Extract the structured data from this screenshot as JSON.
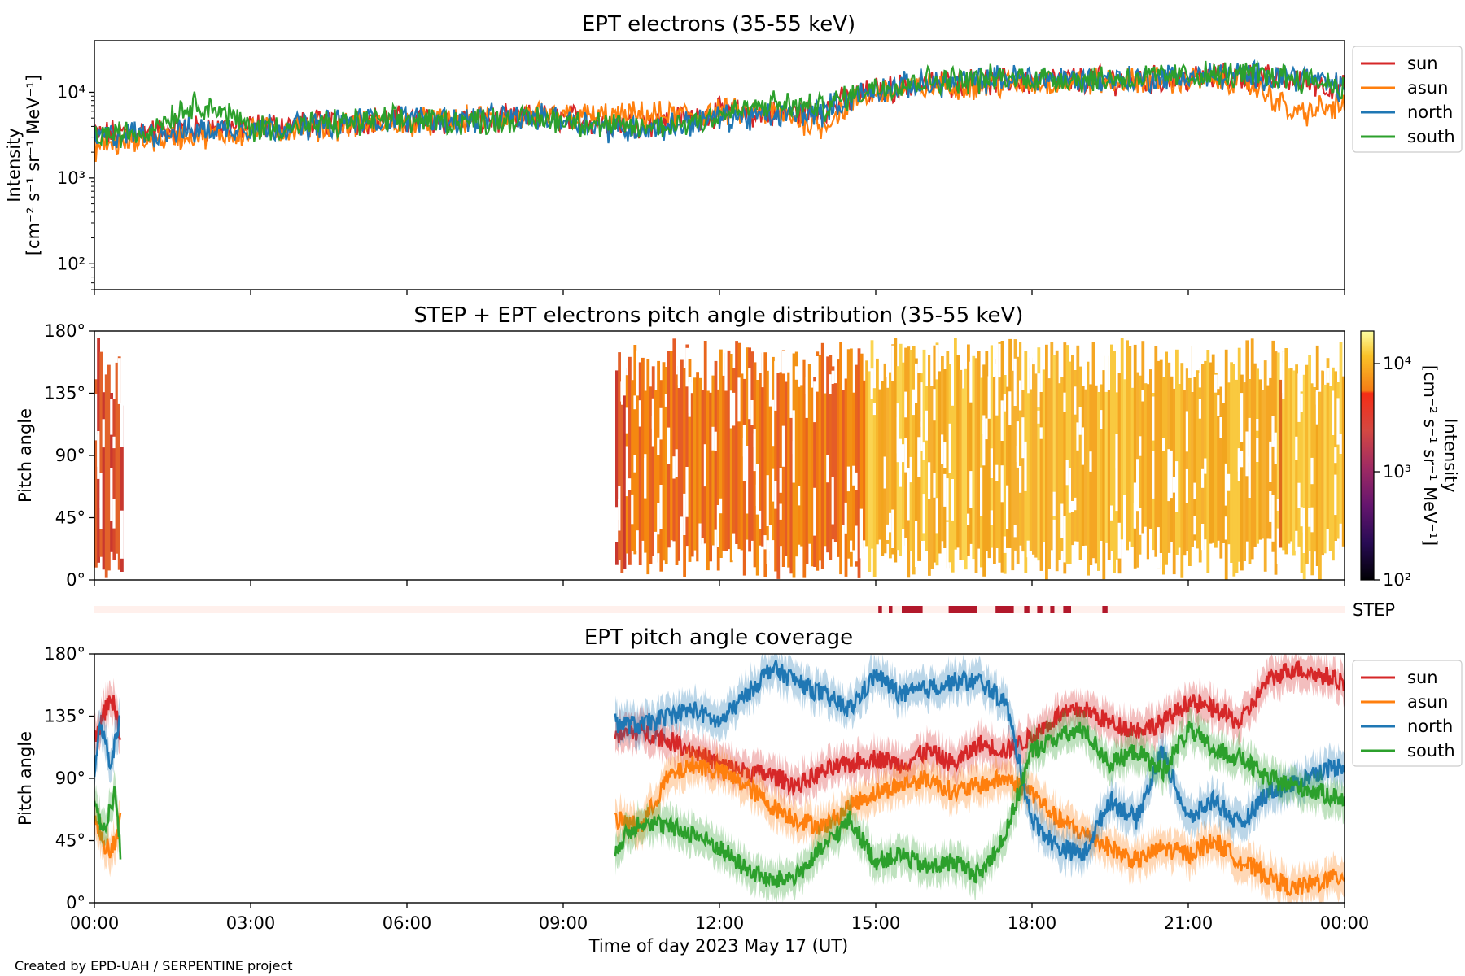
{
  "credit": "Created by EPD-UAH / SERPENTINE project",
  "colors": {
    "sun": "#d62728",
    "asun": "#ff7f0e",
    "north": "#1f77b4",
    "south": "#2ca02c",
    "step_bar": "#b2182b",
    "step_bg": "#fff0ec"
  },
  "chart_data": [
    {
      "type": "line",
      "title": "EPT electrons (35-55 keV)",
      "ylabel": [
        "Intensity",
        "[cm⁻² s⁻¹ sr⁻¹ MeV⁻¹]"
      ],
      "yscale": "log",
      "ylim": [
        50,
        40000
      ],
      "yticks": [
        {
          "v": 100,
          "label": "10²"
        },
        {
          "v": 1000,
          "label": "10³"
        },
        {
          "v": 10000,
          "label": "10⁴"
        }
      ],
      "x_unit": "hours",
      "xlim": [
        0,
        24
      ],
      "legend": {
        "entries": [
          "sun",
          "asun",
          "north",
          "south"
        ],
        "placement": "outside-right"
      },
      "series": [
        {
          "name": "sun",
          "color": "#d62728",
          "x": [
            0,
            1,
            2,
            3,
            4,
            5,
            6,
            7,
            8,
            9,
            10,
            11,
            12,
            13,
            14,
            15,
            16,
            17,
            18,
            19,
            20,
            21,
            22,
            23,
            24
          ],
          "y": [
            3200,
            3500,
            3800,
            4000,
            4200,
            4700,
            4800,
            4600,
            4900,
            5100,
            4300,
            4500,
            5800,
            5500,
            6200,
            10500,
            12500,
            13000,
            13500,
            14000,
            13800,
            14500,
            15000,
            14000,
            11000
          ]
        },
        {
          "name": "asun",
          "color": "#ff7f0e",
          "x": [
            0,
            1,
            2,
            3,
            4,
            5,
            6,
            7,
            8,
            9,
            10,
            11,
            12,
            13,
            14,
            15,
            16,
            17,
            18,
            19,
            20,
            21,
            22,
            23,
            24
          ],
          "y": [
            2300,
            2800,
            3200,
            3400,
            3900,
            4200,
            4400,
            4700,
            5100,
            5300,
            5200,
            5400,
            5900,
            5600,
            4100,
            10000,
            11500,
            12200,
            12800,
            13200,
            13500,
            14200,
            13800,
            5500,
            7000
          ]
        },
        {
          "name": "north",
          "color": "#1f77b4",
          "x": [
            0,
            1,
            2,
            3,
            4,
            5,
            6,
            7,
            8,
            9,
            10,
            11,
            12,
            13,
            14,
            15,
            16,
            17,
            18,
            19,
            20,
            21,
            22,
            23,
            24
          ],
          "y": [
            3000,
            3300,
            3600,
            3900,
            4100,
            4600,
            5000,
            4800,
            5000,
            4900,
            3700,
            3900,
            5100,
            5200,
            6000,
            10800,
            12800,
            13800,
            15200,
            14000,
            14500,
            15300,
            15600,
            15800,
            11000
          ]
        },
        {
          "name": "south",
          "color": "#2ca02c",
          "x": [
            0,
            1,
            2,
            3,
            4,
            5,
            6,
            7,
            8,
            9,
            10,
            11,
            12,
            13,
            14,
            15,
            16,
            17,
            18,
            19,
            20,
            21,
            22,
            23,
            24
          ],
          "y": [
            3100,
            3400,
            7500,
            3800,
            4000,
            4500,
            4700,
            4600,
            4800,
            4800,
            3900,
            4000,
            5300,
            7200,
            6600,
            11500,
            13800,
            14200,
            14800,
            14500,
            14600,
            15800,
            16000,
            15200,
            11500
          ]
        }
      ]
    },
    {
      "type": "heatmap",
      "title": "STEP + EPT electrons pitch angle distribution (35-55 keV)",
      "ylabel": "Pitch angle",
      "ylim": [
        0,
        180
      ],
      "yticks": [
        "0°",
        "45°",
        "90°",
        "135°",
        "180°"
      ],
      "x_unit": "hours",
      "xlim": [
        0,
        24
      ],
      "data_intervals_hours": [
        [
          0.0,
          0.5
        ],
        [
          10.0,
          24.0
        ]
      ],
      "colorbar": {
        "label": [
          "Intensity",
          "[cm⁻² s⁻¹ sr⁻¹ MeV⁻¹]"
        ],
        "scale": "log",
        "range": [
          100,
          20000
        ],
        "ticks": [
          {
            "v": 100,
            "label": "10²"
          },
          {
            "v": 1000,
            "label": "10³"
          },
          {
            "v": 10000,
            "label": "10⁴"
          }
        ],
        "colormap": "inferno"
      }
    },
    {
      "type": "timeline",
      "label": "STEP",
      "x_unit": "hours",
      "intervals_hours": [
        [
          15.05,
          15.12
        ],
        [
          15.25,
          15.32
        ],
        [
          15.5,
          15.9
        ],
        [
          16.4,
          16.95
        ],
        [
          17.3,
          17.65
        ],
        [
          17.85,
          17.95
        ],
        [
          18.1,
          18.2
        ],
        [
          18.35,
          18.43
        ],
        [
          18.6,
          18.75
        ],
        [
          19.35,
          19.45
        ]
      ]
    },
    {
      "type": "line",
      "title": "EPT pitch angle coverage",
      "ylabel": "Pitch angle",
      "ylim": [
        0,
        180
      ],
      "yticks": [
        "0°",
        "45°",
        "90°",
        "135°",
        "180°"
      ],
      "xlabel": "Time of day 2023 May 17 (UT)",
      "xticks": [
        "00:00",
        "03:00",
        "06:00",
        "09:00",
        "12:00",
        "15:00",
        "18:00",
        "21:00",
        "00:00"
      ],
      "x_unit": "hours",
      "xlim": [
        0,
        24
      ],
      "legend": {
        "entries": [
          "sun",
          "asun",
          "north",
          "south"
        ],
        "placement": "outside-right"
      },
      "series": [
        {
          "name": "sun",
          "color": "#d62728",
          "segments": [
            {
              "x": [
                0.0,
                0.1,
                0.2,
                0.3,
                0.4,
                0.5
              ],
              "y": [
                120,
                128,
                138,
                150,
                140,
                120
              ]
            },
            {
              "x": [
                10.0,
                10.5,
                11.0,
                11.5,
                12.0,
                12.5,
                13.0,
                13.5,
                14.0,
                14.5,
                15.0,
                15.5,
                16.0,
                16.5,
                17.0,
                17.5,
                18.0,
                18.5,
                19.0,
                19.5,
                20.0,
                20.5,
                21.0,
                21.5,
                22.0,
                22.5,
                23.0,
                23.5,
                24.0
              ],
              "y": [
                120,
                125,
                118,
                110,
                100,
                95,
                92,
                85,
                95,
                100,
                105,
                100,
                110,
                100,
                115,
                110,
                120,
                135,
                140,
                130,
                125,
                130,
                145,
                140,
                130,
                160,
                170,
                165,
                160
              ]
            }
          ]
        },
        {
          "name": "asun",
          "color": "#ff7f0e",
          "segments": [
            {
              "x": [
                0.0,
                0.1,
                0.2,
                0.3,
                0.4,
                0.5
              ],
              "y": [
                60,
                50,
                42,
                38,
                45,
                60
              ]
            },
            {
              "x": [
                10.0,
                10.5,
                11.0,
                11.5,
                12.0,
                12.5,
                13.0,
                13.5,
                14.0,
                14.5,
                15.0,
                15.5,
                16.0,
                16.5,
                17.0,
                17.5,
                18.0,
                18.5,
                19.0,
                19.5,
                20.0,
                20.5,
                21.0,
                21.5,
                22.0,
                22.5,
                23.0,
                23.5,
                24.0
              ],
              "y": [
                60,
                55,
                90,
                100,
                95,
                85,
                70,
                60,
                55,
                70,
                80,
                85,
                90,
                80,
                85,
                90,
                80,
                60,
                50,
                40,
                30,
                40,
                35,
                45,
                30,
                20,
                10,
                15,
                20
              ]
            }
          ]
        },
        {
          "name": "north",
          "color": "#1f77b4",
          "segments": [
            {
              "x": [
                0.0,
                0.1,
                0.2,
                0.3,
                0.4,
                0.5
              ],
              "y": [
                95,
                130,
                120,
                100,
                115,
                140
              ]
            },
            {
              "x": [
                10.0,
                10.5,
                11.0,
                11.5,
                12.0,
                12.5,
                13.0,
                13.5,
                14.0,
                14.5,
                15.0,
                15.5,
                16.0,
                16.5,
                17.0,
                17.5,
                18.0,
                18.5,
                19.0,
                19.5,
                20.0,
                20.5,
                21.0,
                21.5,
                22.0,
                22.5,
                23.0,
                23.5,
                24.0
              ],
              "y": [
                130,
                128,
                135,
                140,
                130,
                150,
                170,
                160,
                150,
                140,
                165,
                150,
                155,
                160,
                160,
                145,
                60,
                40,
                35,
                75,
                60,
                110,
                60,
                75,
                55,
                80,
                85,
                95,
                100
              ]
            }
          ]
        },
        {
          "name": "south",
          "color": "#2ca02c",
          "segments": [
            {
              "x": [
                0.0,
                0.1,
                0.2,
                0.3,
                0.4,
                0.5
              ],
              "y": [
                75,
                60,
                50,
                70,
                80,
                35
              ]
            },
            {
              "x": [
                10.0,
                10.5,
                11.0,
                11.5,
                12.0,
                12.5,
                13.0,
                13.5,
                14.0,
                14.5,
                15.0,
                15.5,
                16.0,
                16.5,
                17.0,
                17.5,
                18.0,
                18.5,
                19.0,
                19.5,
                20.0,
                20.5,
                21.0,
                21.5,
                22.0,
                22.5,
                23.0,
                23.5,
                24.0
              ],
              "y": [
                40,
                60,
                55,
                50,
                40,
                25,
                15,
                20,
                40,
                60,
                30,
                35,
                25,
                30,
                20,
                50,
                110,
                120,
                125,
                100,
                110,
                95,
                125,
                110,
                105,
                90,
                85,
                80,
                75
              ]
            }
          ]
        }
      ]
    }
  ]
}
